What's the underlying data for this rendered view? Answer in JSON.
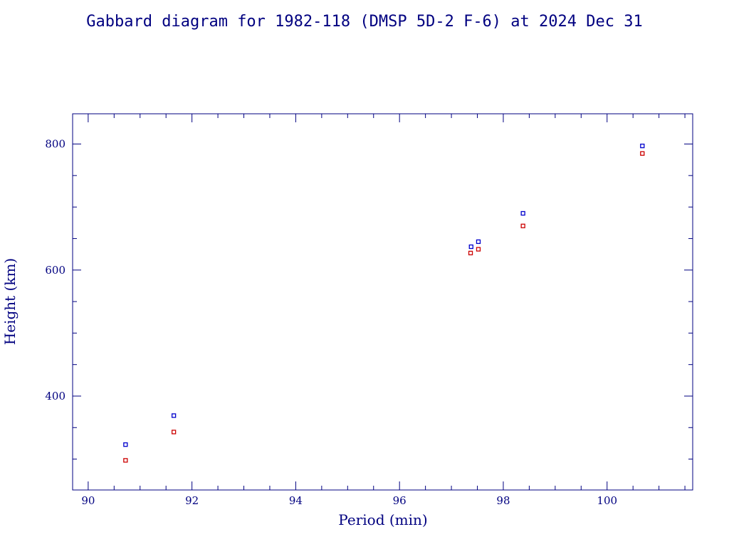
{
  "chart_data": {
    "type": "scatter",
    "title": "Gabbard diagram for 1982-118 (DMSP 5D-2 F-6) at 2024 Dec 31",
    "xlabel": "Period (min)",
    "ylabel": "Height (km)",
    "xlim": [
      89.7,
      101.65
    ],
    "ylim": [
      251,
      848
    ],
    "x_ticks": [
      90,
      92,
      94,
      96,
      98,
      100
    ],
    "x_minor_step": 0.5,
    "y_ticks": [
      400,
      600,
      800
    ],
    "y_minor_step": 50,
    "grid": false,
    "legend": "none",
    "series": [
      {
        "color": "#0000cc",
        "points": [
          {
            "x": 90.72,
            "y": 323
          },
          {
            "x": 91.65,
            "y": 369
          },
          {
            "x": 97.38,
            "y": 637
          },
          {
            "x": 97.52,
            "y": 645
          },
          {
            "x": 98.38,
            "y": 690
          },
          {
            "x": 100.68,
            "y": 797
          }
        ]
      },
      {
        "color": "#cc0000",
        "points": [
          {
            "x": 90.72,
            "y": 298
          },
          {
            "x": 91.65,
            "y": 343
          },
          {
            "x": 97.37,
            "y": 627
          },
          {
            "x": 97.52,
            "y": 633
          },
          {
            "x": 98.38,
            "y": 670
          },
          {
            "x": 100.68,
            "y": 785
          }
        ]
      }
    ]
  },
  "colors": {
    "axis": "#000080",
    "text": "#000080",
    "background": "#ffffff"
  }
}
